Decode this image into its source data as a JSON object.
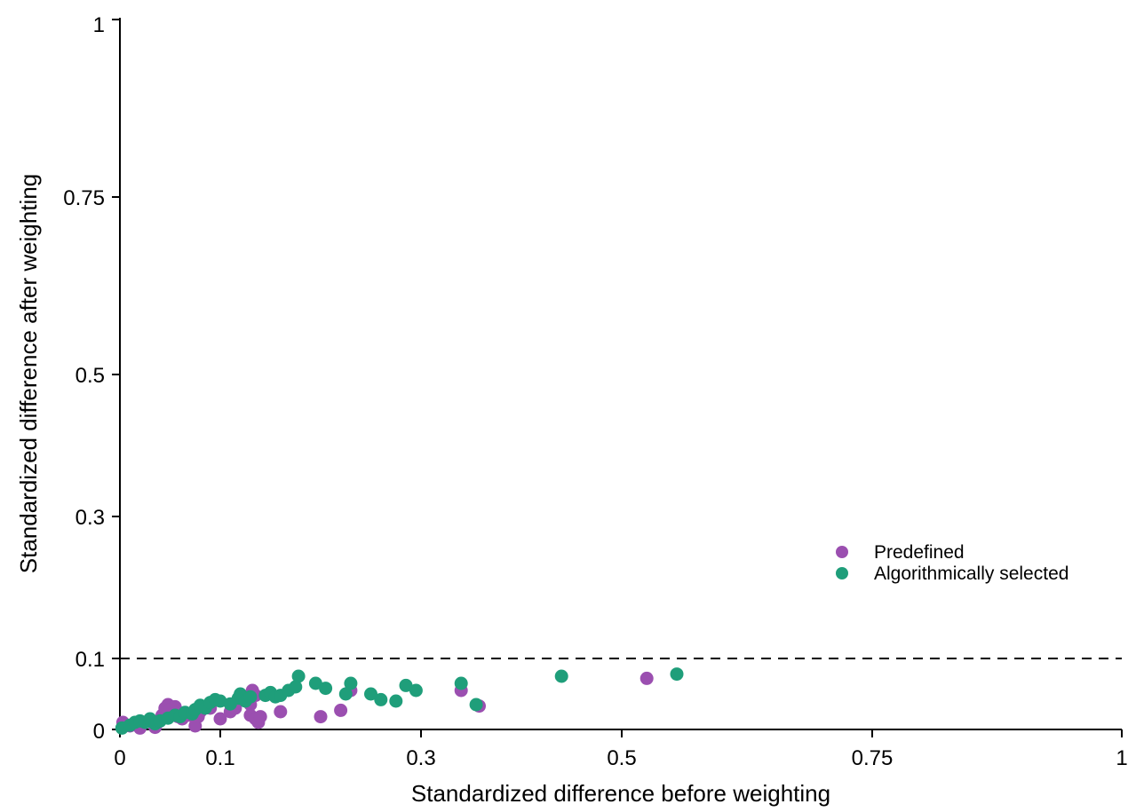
{
  "chart_data": {
    "type": "scatter",
    "title": "",
    "xlabel": "Standardized difference before weighting",
    "ylabel": "Standardized difference after weighting",
    "xlim": [
      0,
      1
    ],
    "ylim": [
      0,
      1
    ],
    "x_ticks": [
      {
        "value": 0,
        "label": "0"
      },
      {
        "value": 0.1,
        "label": "0.1"
      },
      {
        "value": 0.3,
        "label": "0.3"
      },
      {
        "value": 0.5,
        "label": "0.5"
      },
      {
        "value": 0.75,
        "label": "0.75"
      },
      {
        "value": 1,
        "label": "1"
      }
    ],
    "y_ticks": [
      {
        "value": 0,
        "label": "0"
      },
      {
        "value": 0.1,
        "label": "0.1"
      },
      {
        "value": 0.3,
        "label": "0.3"
      },
      {
        "value": 0.5,
        "label": "0.5"
      },
      {
        "value": 0.75,
        "label": "0.75"
      },
      {
        "value": 1,
        "label": "1"
      }
    ],
    "scale_note": "non-linear axis spacing: ticks 0,0.1,0.3,0.5,0.75,1 as drawn",
    "reference_line": {
      "y": 0.1,
      "style": "dashed"
    },
    "grid": false,
    "legend_position": "right",
    "series": [
      {
        "name": "Predefined",
        "color": "#9b4fb0",
        "points": [
          [
            0.003,
            0.01
          ],
          [
            0.01,
            0.005
          ],
          [
            0.02,
            0.002
          ],
          [
            0.035,
            0.003
          ],
          [
            0.038,
            0.01
          ],
          [
            0.042,
            0.02
          ],
          [
            0.045,
            0.03
          ],
          [
            0.048,
            0.035
          ],
          [
            0.05,
            0.028
          ],
          [
            0.055,
            0.032
          ],
          [
            0.058,
            0.018
          ],
          [
            0.062,
            0.015
          ],
          [
            0.07,
            0.02
          ],
          [
            0.075,
            0.005
          ],
          [
            0.078,
            0.018
          ],
          [
            0.08,
            0.025
          ],
          [
            0.09,
            0.03
          ],
          [
            0.1,
            0.015
          ],
          [
            0.11,
            0.025
          ],
          [
            0.115,
            0.03
          ],
          [
            0.122,
            0.042
          ],
          [
            0.13,
            0.035
          ],
          [
            0.132,
            0.055
          ],
          [
            0.135,
            0.048
          ],
          [
            0.13,
            0.02
          ],
          [
            0.135,
            0.015
          ],
          [
            0.138,
            0.01
          ],
          [
            0.14,
            0.018
          ],
          [
            0.16,
            0.025
          ],
          [
            0.2,
            0.018
          ],
          [
            0.22,
            0.027
          ],
          [
            0.23,
            0.055
          ],
          [
            0.34,
            0.055
          ],
          [
            0.358,
            0.033
          ],
          [
            0.525,
            0.072
          ]
        ]
      },
      {
        "name": "Algorithmically selected",
        "color": "#1f9e7a",
        "points": [
          [
            0.002,
            0.002
          ],
          [
            0.01,
            0.006
          ],
          [
            0.015,
            0.01
          ],
          [
            0.02,
            0.012
          ],
          [
            0.025,
            0.01
          ],
          [
            0.03,
            0.015
          ],
          [
            0.035,
            0.008
          ],
          [
            0.04,
            0.012
          ],
          [
            0.048,
            0.016
          ],
          [
            0.055,
            0.02
          ],
          [
            0.06,
            0.018
          ],
          [
            0.065,
            0.024
          ],
          [
            0.072,
            0.022
          ],
          [
            0.075,
            0.028
          ],
          [
            0.08,
            0.034
          ],
          [
            0.085,
            0.03
          ],
          [
            0.09,
            0.038
          ],
          [
            0.095,
            0.042
          ],
          [
            0.1,
            0.04
          ],
          [
            0.11,
            0.036
          ],
          [
            0.118,
            0.044
          ],
          [
            0.12,
            0.05
          ],
          [
            0.125,
            0.04
          ],
          [
            0.13,
            0.046
          ],
          [
            0.145,
            0.048
          ],
          [
            0.15,
            0.052
          ],
          [
            0.155,
            0.046
          ],
          [
            0.16,
            0.048
          ],
          [
            0.168,
            0.055
          ],
          [
            0.175,
            0.06
          ],
          [
            0.178,
            0.075
          ],
          [
            0.195,
            0.065
          ],
          [
            0.205,
            0.058
          ],
          [
            0.225,
            0.05
          ],
          [
            0.23,
            0.065
          ],
          [
            0.25,
            0.05
          ],
          [
            0.26,
            0.042
          ],
          [
            0.275,
            0.04
          ],
          [
            0.285,
            0.062
          ],
          [
            0.295,
            0.055
          ],
          [
            0.34,
            0.065
          ],
          [
            0.355,
            0.035
          ],
          [
            0.44,
            0.075
          ],
          [
            0.555,
            0.078
          ]
        ]
      }
    ]
  }
}
